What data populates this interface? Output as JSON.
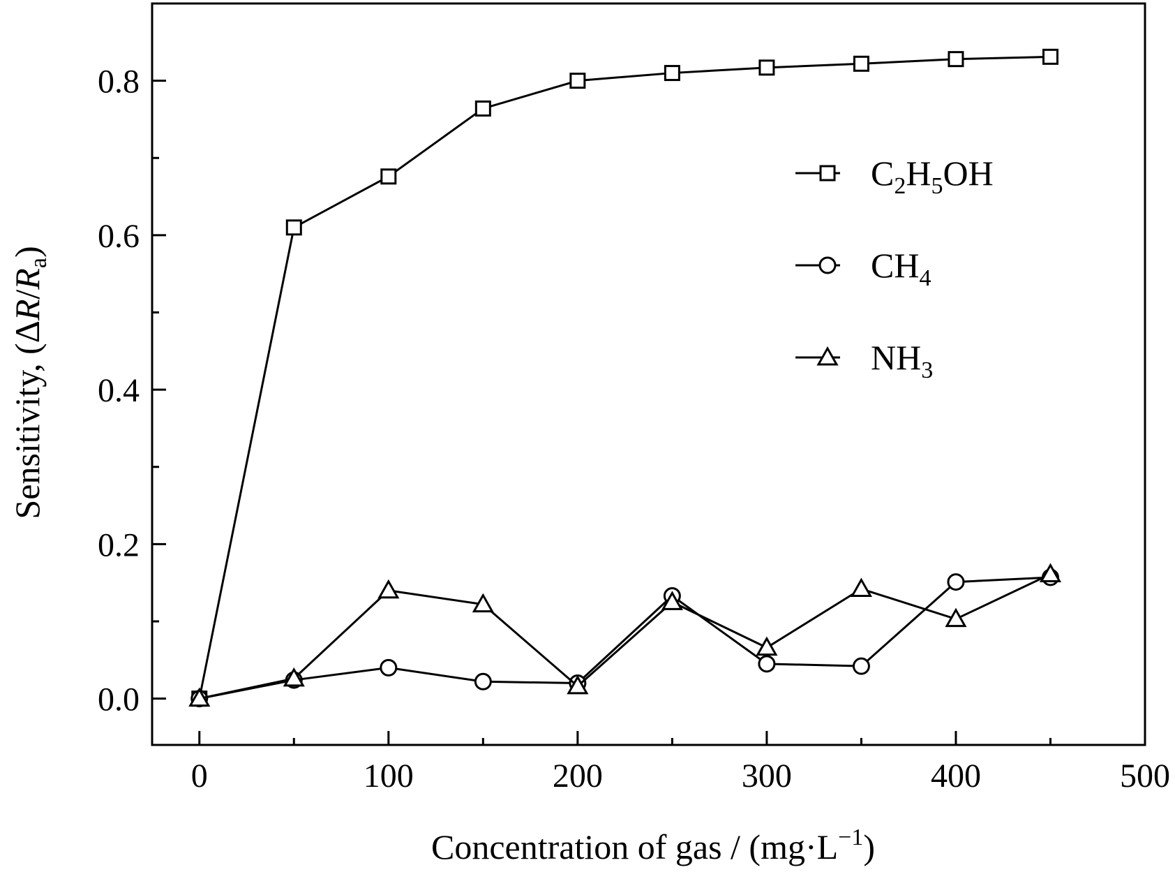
{
  "chart_data": {
    "type": "line",
    "xlabel": {
      "main": "Concentration of gas / (mg·L",
      "sup": "−1",
      "close": ")"
    },
    "ylabel": {
      "prefix": "Sensitivity, (Δ",
      "r1": "R",
      "slash": "/",
      "r2": "R",
      "sub": "a",
      "close": ")"
    },
    "xlim": [
      -25,
      500
    ],
    "ylim": [
      -0.06,
      0.9
    ],
    "xticks": [
      0,
      100,
      200,
      300,
      400,
      500
    ],
    "xtick_labels": [
      "0",
      "100",
      "200",
      "300",
      "400",
      "500"
    ],
    "yticks": [
      0.0,
      0.2,
      0.4,
      0.6,
      0.8
    ],
    "ytick_labels": [
      "0.0",
      "0.2",
      "0.4",
      "0.6",
      "0.8"
    ],
    "x": [
      0,
      50,
      100,
      150,
      200,
      250,
      300,
      350,
      400,
      450
    ],
    "series": [
      {
        "label_parts": [
          [
            "C",
            ""
          ],
          [
            "2",
            "sub"
          ],
          [
            "H",
            ""
          ],
          [
            "5",
            "sub"
          ],
          [
            "OH",
            ""
          ]
        ],
        "marker": "square",
        "values": [
          0.0,
          0.61,
          0.676,
          0.764,
          0.8,
          0.81,
          0.817,
          0.822,
          0.828,
          0.831
        ]
      },
      {
        "label_parts": [
          [
            "CH",
            ""
          ],
          [
            "4",
            "sub"
          ]
        ],
        "marker": "circle",
        "values": [
          0.0,
          0.024,
          0.04,
          0.022,
          0.02,
          0.133,
          0.045,
          0.042,
          0.151,
          0.157
        ]
      },
      {
        "label_parts": [
          [
            "NH",
            ""
          ],
          [
            "3",
            "sub"
          ]
        ],
        "marker": "triangle",
        "values": [
          0.0,
          0.026,
          0.14,
          0.122,
          0.016,
          0.125,
          0.066,
          0.142,
          0.103,
          0.161
        ]
      }
    ],
    "legend_position": "top-right",
    "grid": false
  }
}
